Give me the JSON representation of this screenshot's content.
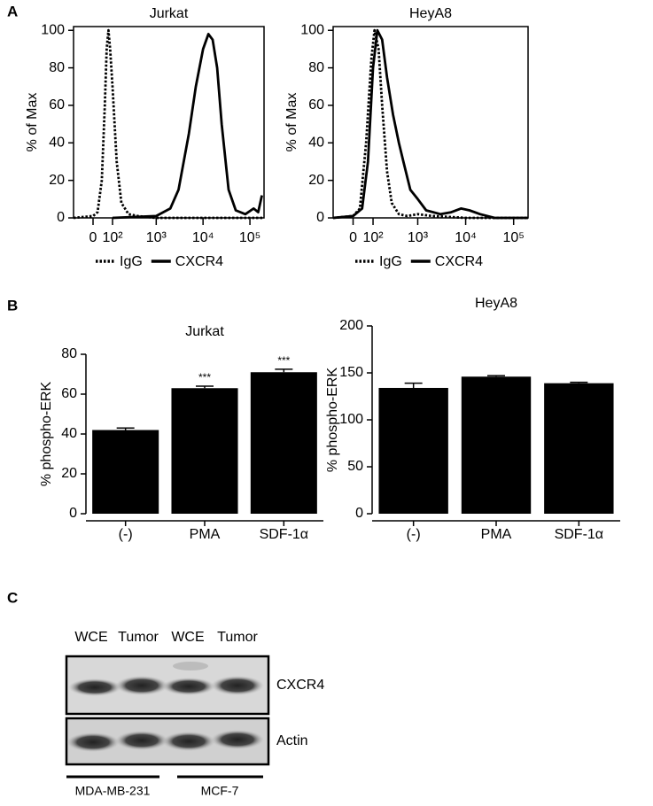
{
  "panels": [
    "A",
    "B",
    "C"
  ],
  "chart_data": [
    {
      "type": "line",
      "title": "Jurkat",
      "ylabel": "% of Max",
      "xscale": "biexponential",
      "xlim": [
        -100,
        200000
      ],
      "ylim": [
        0,
        102
      ],
      "xticks": [
        0,
        {
          "value": 100,
          "label": "10²"
        },
        {
          "value": 1000,
          "label": "10³"
        },
        {
          "value": 10000,
          "label": "10⁴"
        },
        {
          "value": 100000,
          "label": "10⁵"
        }
      ],
      "yticks": [
        0,
        20,
        40,
        60,
        80,
        100
      ],
      "series": [
        {
          "name": "IgG",
          "color": "#000000",
          "line_style": "dotted",
          "x": [
            -100,
            0,
            20,
            40,
            55,
            65,
            75,
            85,
            100,
            130,
            170,
            250,
            400,
            1000,
            10000,
            200000
          ],
          "values": [
            0,
            1,
            3,
            20,
            60,
            90,
            100,
            90,
            70,
            30,
            8,
            2,
            1,
            0,
            0,
            0
          ]
        },
        {
          "name": "CXCR4",
          "color": "#000000",
          "line_style": "solid",
          "x": [
            100,
            1000,
            2000,
            3000,
            5000,
            7000,
            10000,
            13000,
            16000,
            20000,
            25000,
            35000,
            50000,
            80000,
            120000,
            150000,
            180000
          ],
          "values": [
            0,
            1,
            5,
            15,
            45,
            70,
            90,
            98,
            95,
            80,
            50,
            15,
            4,
            2,
            5,
            3,
            12
          ]
        }
      ]
    },
    {
      "type": "line",
      "title": "HeyA8",
      "ylabel": "% of Max",
      "xscale": "biexponential",
      "xlim": [
        -100,
        200000
      ],
      "ylim": [
        0,
        102
      ],
      "xticks": [
        0,
        {
          "value": 100,
          "label": "10²"
        },
        {
          "value": 1000,
          "label": "10³"
        },
        {
          "value": 10000,
          "label": "10⁴"
        },
        {
          "value": 100000,
          "label": "10⁵"
        }
      ],
      "yticks": [
        0,
        20,
        40,
        60,
        80,
        100
      ],
      "series": [
        {
          "name": "IgG",
          "color": "#000000",
          "line_style": "dotted",
          "x": [
            -100,
            0,
            30,
            60,
            90,
            110,
            140,
            170,
            220,
            280,
            400,
            600,
            1000,
            2000,
            10000,
            200000
          ],
          "values": [
            0,
            1,
            5,
            40,
            85,
            100,
            90,
            60,
            25,
            8,
            2,
            1,
            2,
            1,
            0,
            0
          ]
        },
        {
          "name": "CXCR4",
          "color": "#000000",
          "line_style": "solid",
          "x": [
            -100,
            0,
            40,
            70,
            100,
            130,
            170,
            220,
            300,
            400,
            500,
            700,
            1000,
            1500,
            3000,
            5000,
            8000,
            12000,
            20000,
            40000,
            200000
          ],
          "values": [
            0,
            1,
            5,
            30,
            80,
            100,
            95,
            75,
            55,
            40,
            30,
            15,
            10,
            4,
            2,
            3,
            5,
            4,
            2,
            0,
            0
          ]
        }
      ]
    },
    {
      "type": "bar",
      "title": "Jurkat",
      "ylabel": "% phospho-ERK",
      "categories": [
        "(-)",
        "PMA",
        "SDF-1α"
      ],
      "values": [
        42,
        63,
        71
      ],
      "errors": [
        1,
        1,
        1.5
      ],
      "annotations": [
        null,
        "***",
        "***"
      ],
      "color": "#000000",
      "ylim": [
        0,
        80
      ],
      "yticks": [
        0,
        20,
        40,
        60,
        80
      ]
    },
    {
      "type": "bar",
      "title": "HeyA8",
      "ylabel": "% phospho-ERK",
      "categories": [
        "(-)",
        "PMA",
        "SDF-1α"
      ],
      "values": [
        134,
        146,
        139
      ],
      "errors": [
        5,
        1,
        1
      ],
      "annotations": [
        null,
        null,
        null
      ],
      "color": "#000000",
      "ylim": [
        0,
        200
      ],
      "yticks": [
        0,
        50,
        100,
        150,
        200
      ]
    }
  ],
  "blot": {
    "lanes": [
      "WCE",
      "Tumor",
      "WCE",
      "Tumor"
    ],
    "bands": [
      "CXCR4",
      "Actin"
    ],
    "groups": [
      "MDA-MB-231",
      "MCF-7"
    ]
  }
}
